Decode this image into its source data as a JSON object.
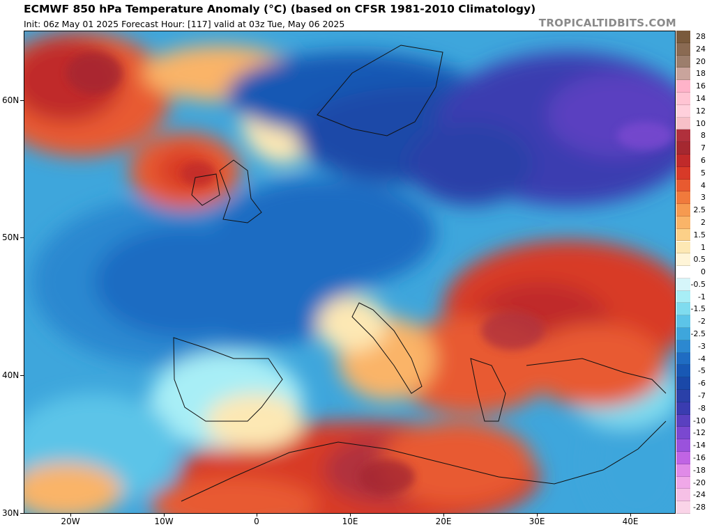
{
  "header": {
    "title": "ECMWF 850 hPa Temperature Anomaly (°C) (based on CFSR 1981-2010 Climatology)",
    "subtitle": "Init: 06z May 01 2025   Forecast Hour: [117]   valid at 03z Tue, May 06 2025",
    "brand": "TROPICALTIDBITS.COM"
  },
  "map": {
    "latitude_labels": [
      "60N",
      "50N",
      "40N",
      "30N"
    ],
    "longitude_labels": [
      "20W",
      "10W",
      "0",
      "10E",
      "20E",
      "30E",
      "40E"
    ]
  },
  "colorbar": {
    "unit": "°C",
    "levels": [
      {
        "label": "28",
        "color": "#7a5a3c"
      },
      {
        "label": "24",
        "color": "#8a6a52"
      },
      {
        "label": "20",
        "color": "#9c7e6c"
      },
      {
        "label": "18",
        "color": "#c9a49c"
      },
      {
        "label": "16",
        "color": "#ffb3c9"
      },
      {
        "label": "14",
        "color": "#ffc4d3"
      },
      {
        "label": "12",
        "color": "#ffd0dc"
      },
      {
        "label": "10",
        "color": "#f7c0c8"
      },
      {
        "label": "8",
        "color": "#b0303c"
      },
      {
        "label": "7",
        "color": "#a52830"
      },
      {
        "label": "6",
        "color": "#c02a2a"
      },
      {
        "label": "5",
        "color": "#d83a28"
      },
      {
        "label": "4",
        "color": "#e85a30"
      },
      {
        "label": "3",
        "color": "#f07a3c"
      },
      {
        "label": "2.5",
        "color": "#f69a50"
      },
      {
        "label": "2",
        "color": "#fab468"
      },
      {
        "label": "1.5",
        "color": "#fcd088"
      },
      {
        "label": "1",
        "color": "#fde8b4"
      },
      {
        "label": "0.5",
        "color": "#fff5d8"
      },
      {
        "label": "0",
        "color": "#ffffff"
      },
      {
        "label": "-0.5",
        "color": "#d6f6fa"
      },
      {
        "label": "-1",
        "color": "#a8eef6"
      },
      {
        "label": "-1.5",
        "color": "#7fdcef"
      },
      {
        "label": "-2",
        "color": "#5cc4e8"
      },
      {
        "label": "-2.5",
        "color": "#3ea6dc"
      },
      {
        "label": "-3",
        "color": "#2c88d0"
      },
      {
        "label": "-4",
        "color": "#1f6cc2"
      },
      {
        "label": "-5",
        "color": "#1858b4"
      },
      {
        "label": "-6",
        "color": "#1a48a8"
      },
      {
        "label": "-7",
        "color": "#2a40a8"
      },
      {
        "label": "-8",
        "color": "#3a3cb0"
      },
      {
        "label": "-10",
        "color": "#5a40c0"
      },
      {
        "label": "-12",
        "color": "#7a48d0"
      },
      {
        "label": "-14",
        "color": "#9a52dc"
      },
      {
        "label": "-16",
        "color": "#c064e4"
      },
      {
        "label": "-18",
        "color": "#e08ae8"
      },
      {
        "label": "-20",
        "color": "#f0a8e8"
      },
      {
        "label": "-24",
        "color": "#f6c0e6"
      },
      {
        "label": "-28",
        "color": "#fad4e8"
      }
    ]
  }
}
